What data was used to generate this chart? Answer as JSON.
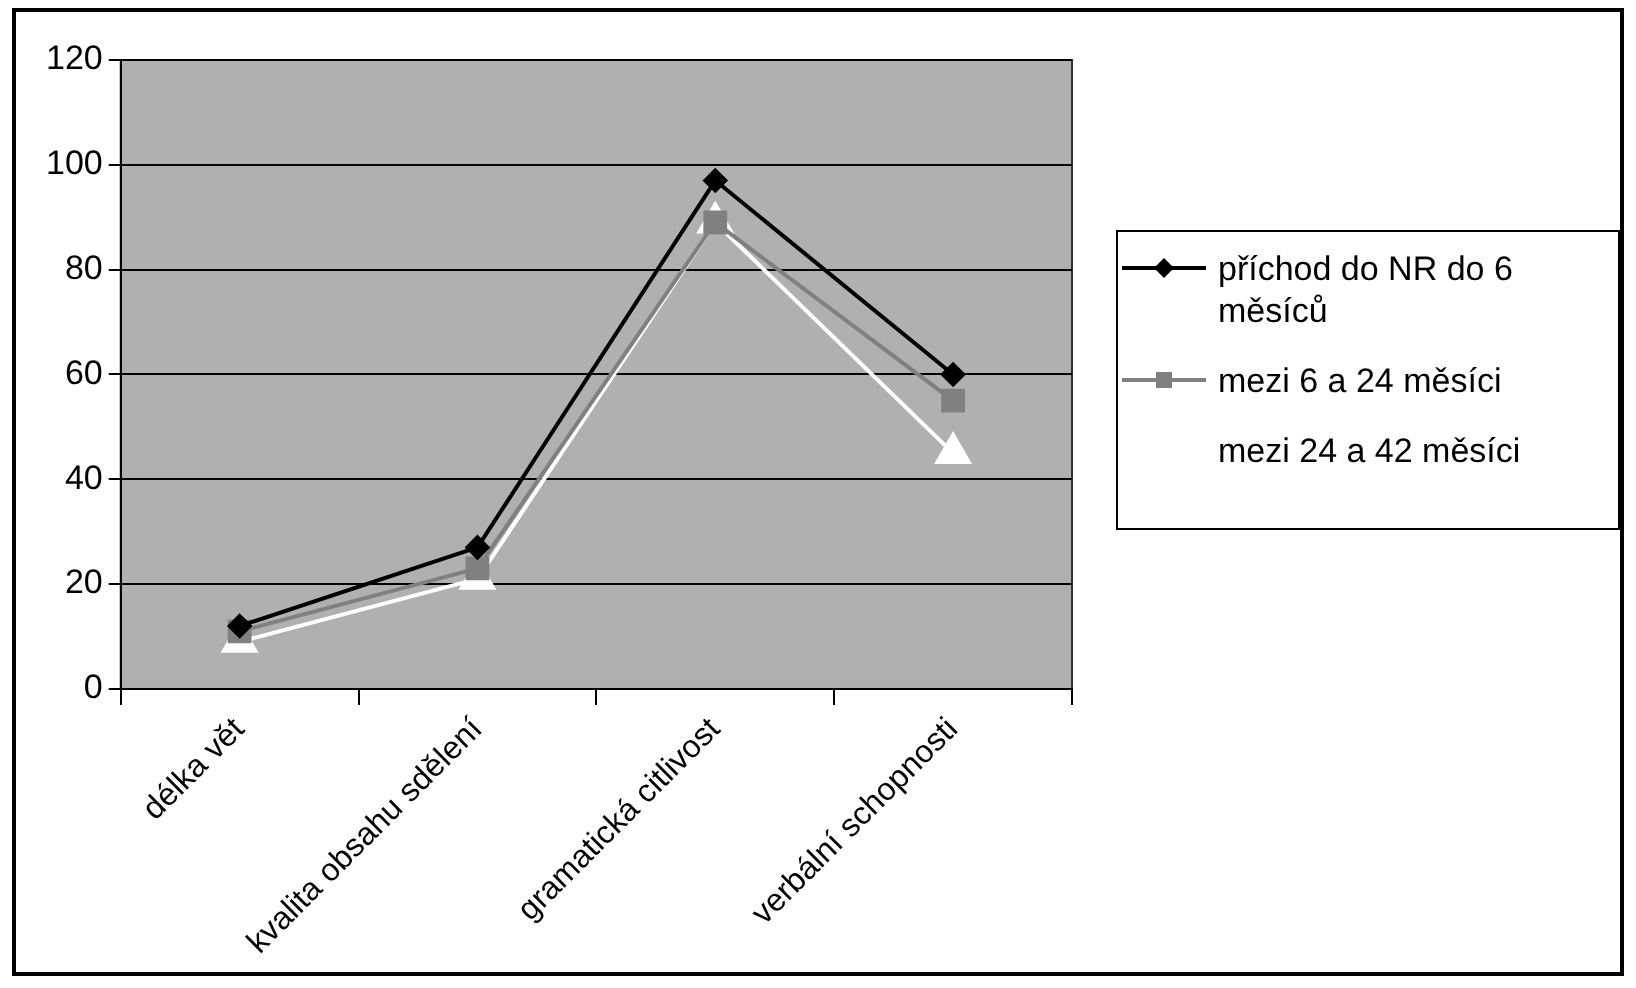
{
  "chart_data": {
    "type": "line",
    "categories": [
      "délka vět",
      "kvalita obsahu sdělení",
      "gramatická citlivost",
      "verbální schopnosti"
    ],
    "series": [
      {
        "name": "příchod do NR do 6 měsíců",
        "color": "#000000",
        "marker": "diamond",
        "values": [
          12,
          27,
          97,
          60
        ]
      },
      {
        "name": "mezi 6 a 24 měsíci",
        "color": "#808080",
        "marker": "square",
        "values": [
          11,
          23,
          89,
          55
        ]
      },
      {
        "name": "mezi 24 a 42 měsíci",
        "color": "#ffffff",
        "marker": "triangle",
        "values": [
          9,
          21,
          89,
          45
        ]
      }
    ],
    "ylim": [
      0,
      120
    ],
    "yticks": [
      0,
      20,
      40,
      60,
      80,
      100,
      120
    ],
    "grid": "y",
    "legend": "right"
  }
}
